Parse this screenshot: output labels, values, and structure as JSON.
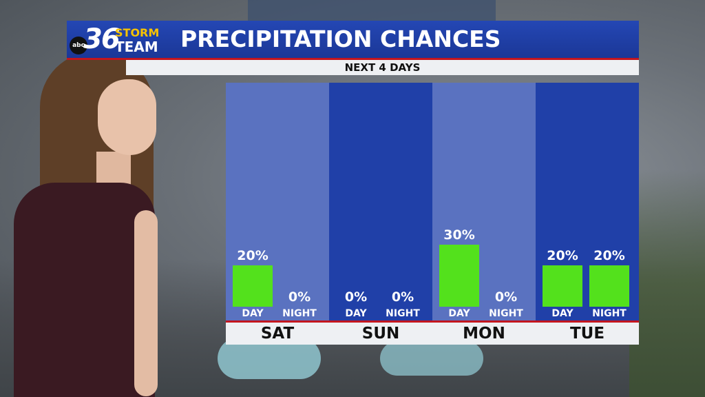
{
  "header": {
    "logo_network": "abc",
    "logo_number": "36",
    "logo_word1": "STORM",
    "logo_word2": "TEAM",
    "title": "PRECIPITATION CHANCES",
    "subtitle": "NEXT 4 DAYS"
  },
  "colors": {
    "header_blue": "#1e3fa5",
    "accent_red": "#c3161f",
    "bar_green": "#53e11c",
    "col_light": "#5a72c0",
    "col_dark": "#2040a8"
  },
  "chart_data": {
    "type": "bar",
    "title": "PRECIPITATION CHANCES",
    "subtitle": "NEXT 4 DAYS",
    "unit": "%",
    "ylim": [
      0,
      100
    ],
    "categories": [
      "SAT",
      "SUN",
      "MON",
      "TUE"
    ],
    "series": [
      {
        "name": "DAY",
        "values": [
          20,
          0,
          30,
          20
        ]
      },
      {
        "name": "NIGHT",
        "values": [
          0,
          0,
          0,
          20
        ]
      }
    ],
    "value_labels": {
      "DAY": [
        "20%",
        "0%",
        "30%",
        "20%"
      ],
      "NIGHT": [
        "0%",
        "0%",
        "0%",
        "20%"
      ]
    }
  }
}
